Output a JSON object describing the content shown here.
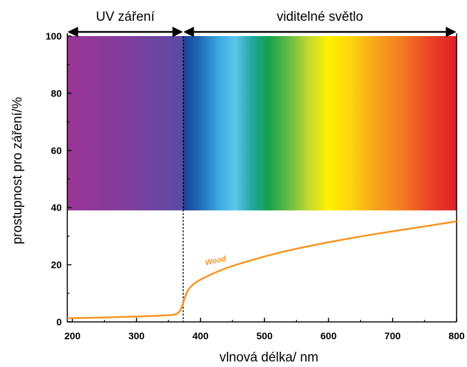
{
  "chart_data": {
    "type": "line",
    "title": "",
    "xlabel": "vlnová délka/ nm",
    "ylabel": "prostupnost pro záření/%",
    "xlim": [
      192,
      800
    ],
    "ylim": [
      0,
      100
    ],
    "x_ticks": [
      200,
      300,
      400,
      500,
      600,
      700,
      800
    ],
    "y_ticks": [
      0,
      20,
      40,
      60,
      80,
      100
    ],
    "region_boundary_nm": 373,
    "regions": [
      {
        "label": "UV záření",
        "from": 192,
        "to": 373
      },
      {
        "label": "viditelné světlo",
        "from": 373,
        "to": 800
      }
    ],
    "spectrum_band": {
      "y_from": 39,
      "y_to": 100
    },
    "series": [
      {
        "name": "Wood",
        "color": "#f7931e",
        "x": [
          192,
          220,
          260,
          300,
          330,
          355,
          362,
          366,
          369,
          372,
          375,
          378,
          382,
          388,
          395,
          405,
          420,
          440,
          460,
          480,
          500,
          530,
          560,
          600,
          650,
          700,
          750,
          800
        ],
        "y": [
          1.3,
          1.4,
          1.6,
          1.9,
          2.1,
          2.4,
          2.7,
          3.3,
          4.2,
          6.0,
          8.2,
          10.0,
          11.6,
          13.0,
          14.2,
          15.4,
          17.0,
          18.8,
          20.3,
          21.6,
          22.9,
          24.6,
          26.1,
          27.9,
          29.9,
          31.7,
          33.4,
          35.2
        ]
      }
    ],
    "series_label_position_nm": 430
  },
  "colors": {
    "axis": "#000000",
    "spectrum": [
      "#9b3596",
      "#8a3c9b",
      "#6a4aa3",
      "#5a4ca6",
      "#1c4fa6",
      "#1e88d0",
      "#4dc0ea",
      "#2bb5a6",
      "#1aa64a",
      "#7dc242",
      "#d5df28",
      "#fff200",
      "#fbb61a",
      "#f7941d",
      "#ef4c26",
      "#e21f26"
    ]
  }
}
